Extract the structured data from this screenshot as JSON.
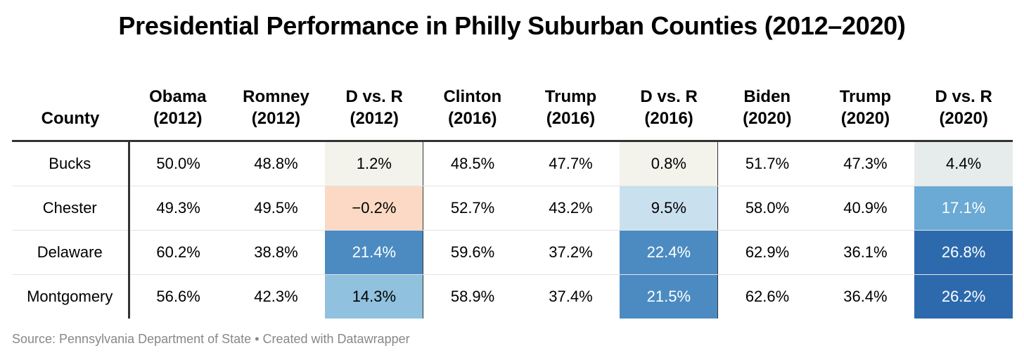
{
  "title": "Presidential Performance in Philly Suburban Counties (2012–2020)",
  "source": "Source: Pennsylvania Department of State • Created with Datawrapper",
  "chart_data": {
    "type": "table",
    "title": "Presidential Performance in Philly Suburban Counties (2012–2020)",
    "columns": [
      {
        "line1": "County",
        "line2": ""
      },
      {
        "line1": "Obama",
        "line2": "(2012)"
      },
      {
        "line1": "Romney",
        "line2": "(2012)"
      },
      {
        "line1": "D vs. R",
        "line2": "(2012)"
      },
      {
        "line1": "Clinton",
        "line2": "(2016)"
      },
      {
        "line1": "Trump",
        "line2": "(2016)"
      },
      {
        "line1": "D vs. R",
        "line2": "(2016)"
      },
      {
        "line1": "Biden",
        "line2": "(2020)"
      },
      {
        "line1": "Trump",
        "line2": "(2020)"
      },
      {
        "line1": "D vs. R",
        "line2": "(2020)"
      }
    ],
    "rows": [
      {
        "county": "Bucks",
        "cells": [
          "50.0%",
          "48.8%",
          "1.2%",
          "48.5%",
          "47.7%",
          "0.8%",
          "51.7%",
          "47.3%",
          "4.4%"
        ],
        "margins": [
          1.2,
          0.8,
          4.4
        ]
      },
      {
        "county": "Chester",
        "cells": [
          "49.3%",
          "49.5%",
          "−0.2%",
          "52.7%",
          "43.2%",
          "9.5%",
          "58.0%",
          "40.9%",
          "17.1%"
        ],
        "margins": [
          -0.2,
          9.5,
          17.1
        ]
      },
      {
        "county": "Delaware",
        "cells": [
          "60.2%",
          "38.8%",
          "21.4%",
          "59.6%",
          "37.2%",
          "22.4%",
          "62.9%",
          "36.1%",
          "26.8%"
        ],
        "margins": [
          21.4,
          22.4,
          26.8
        ]
      },
      {
        "county": "Montgomery",
        "cells": [
          "56.6%",
          "42.3%",
          "14.3%",
          "58.9%",
          "37.4%",
          "21.5%",
          "62.6%",
          "36.4%",
          "26.2%"
        ],
        "margins": [
          14.3,
          21.5,
          26.2
        ]
      }
    ],
    "diff_column_indices": [
      2,
      5,
      8
    ],
    "color_scale": {
      "negative": "#fcd9c4",
      "neutral": "#f3f3ec",
      "light_blue": "#c9e0ee",
      "mid_blue": "#90c1de",
      "blue": "#4b8bc2",
      "dark_blue": "#2d6aad"
    }
  }
}
